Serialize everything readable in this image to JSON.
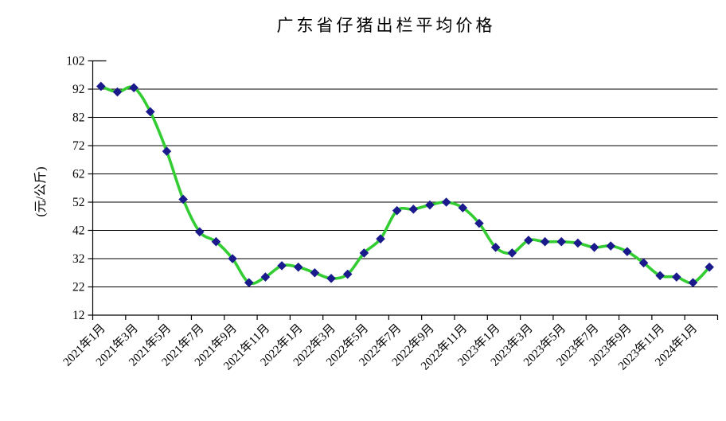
{
  "chart_data": {
    "type": "line",
    "title": "广东省仔猪出栏平均价格",
    "ylabel": "(元/公斤)",
    "xlabel": "",
    "ylim": [
      12,
      102
    ],
    "yticks": [
      102,
      92,
      82,
      72,
      62,
      52,
      42,
      32,
      22,
      12
    ],
    "x_tick_labels": [
      "2021年1月",
      "2021年3月",
      "2021年5月",
      "2021年7月",
      "2021年9月",
      "2021年11月",
      "2022年1月",
      "2022年3月",
      "2022年5月",
      "2022年7月",
      "2022年9月",
      "2022年11月",
      "2023年1月",
      "2023年3月",
      "2023年5月",
      "2023年7月",
      "2023年9月",
      "2023年11月",
      "2024年1月"
    ],
    "x_label_step": 2,
    "categories": [
      "2021年1月",
      "2021年2月",
      "2021年3月",
      "2021年4月",
      "2021年5月",
      "2021年6月",
      "2021年7月",
      "2021年8月",
      "2021年9月",
      "2021年10月",
      "2021年11月",
      "2021年12月",
      "2022年1月",
      "2022年2月",
      "2022年3月",
      "2022年4月",
      "2022年5月",
      "2022年6月",
      "2022年7月",
      "2022年8月",
      "2022年9月",
      "2022年10月",
      "2022年11月",
      "2022年12月",
      "2023年1月",
      "2023年2月",
      "2023年3月",
      "2023年4月",
      "2023年5月",
      "2023年6月",
      "2023年7月",
      "2023年8月",
      "2023年9月",
      "2023年10月",
      "2023年11月",
      "2023年12月",
      "2024年1月",
      "2024年2月"
    ],
    "series": [
      {
        "name": "仔猪出栏平均价格",
        "values": [
          93,
          91,
          92.5,
          84,
          70,
          53,
          41.5,
          38,
          32,
          23.5,
          25.5,
          29.5,
          29,
          27,
          25,
          26.5,
          34,
          39,
          49,
          49.5,
          51,
          52,
          50,
          44.5,
          36,
          34,
          38.5,
          38,
          38,
          37.5,
          36,
          36.5,
          34.5,
          30.5,
          26,
          25.5,
          23.5,
          29
        ]
      }
    ],
    "grid": "horizontal",
    "legend_position": "none",
    "line_style": "smooth",
    "marker": "diamond",
    "colors": {
      "line": "#33cc33",
      "marker": "#1a1a8c",
      "axis": "#000000",
      "grid": "#000000",
      "background": "#ffffff",
      "text": "#000000"
    }
  }
}
